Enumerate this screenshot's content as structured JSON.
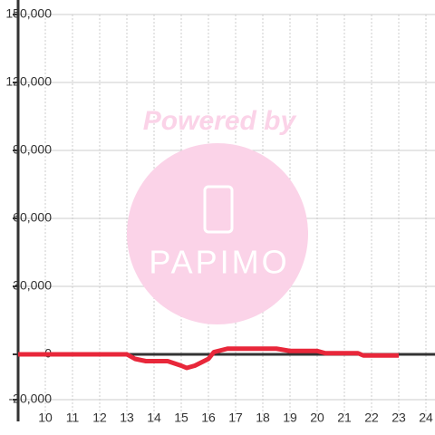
{
  "chart_data": {
    "type": "line",
    "watermark": {
      "top": "Powered by",
      "brand": "PAPIMO"
    },
    "x": [
      9,
      13,
      13.3,
      13.7,
      14.5,
      15,
      15.2,
      15.5,
      16,
      16.2,
      16.7,
      18.5,
      19,
      20,
      20.3,
      21.5,
      21.7,
      23
    ],
    "series": [
      {
        "color": "#e8273a",
        "values": [
          0,
          0,
          -2000,
          -3000,
          -3000,
          -5000,
          -6000,
          -5000,
          -2000,
          1000,
          2500,
          2500,
          1500,
          1500,
          500,
          500,
          -500,
          -500
        ]
      }
    ],
    "xlim": [
      9,
      24.4
    ],
    "xticks": [
      10,
      11,
      12,
      13,
      14,
      15,
      16,
      17,
      18,
      19,
      20,
      21,
      22,
      23,
      24
    ],
    "ylim": [
      -20000,
      150000
    ],
    "yticks": [
      {
        "value": -20000,
        "label": "-20,000"
      },
      0,
      {
        "value": 30000,
        "label": "30,000"
      },
      {
        "value": 60000,
        "label": "60,000"
      },
      {
        "value": 90000,
        "label": "90,000"
      },
      {
        "value": 120000,
        "label": "120,000"
      },
      {
        "value": 150000,
        "label": "150,000"
      }
    ],
    "grid": true
  }
}
